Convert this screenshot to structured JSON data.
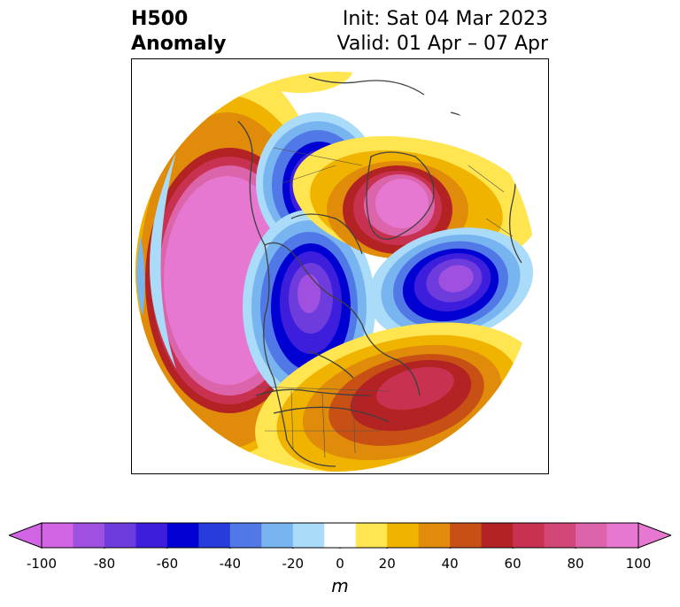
{
  "header": {
    "variable_line1": "H500",
    "variable_line2": "Anomaly",
    "init_text": "Init: Sat 04 Mar 2023",
    "valid_text": "Valid: 01 Apr – 07 Apr"
  },
  "map": {
    "projection": "polar-stereographic",
    "region": "North America / North Atlantic / Arctic"
  },
  "colorbar": {
    "unit": "m",
    "ticks": [
      "-100",
      "-80",
      "-60",
      "-40",
      "-20",
      "0",
      "20",
      "40",
      "60",
      "80",
      "100"
    ],
    "levels": [
      -100,
      -90,
      -80,
      -70,
      -60,
      -50,
      -40,
      -30,
      -20,
      -10,
      10,
      20,
      30,
      40,
      50,
      60,
      70,
      80,
      90,
      100
    ],
    "colors": [
      "#d264e6",
      "#a050e0",
      "#6e3cdc",
      "#3c1edc",
      "#0000d2",
      "#283cdc",
      "#5078e6",
      "#78b4f0",
      "#aadcfa",
      "#ffffff",
      "#ffe650",
      "#f0b400",
      "#e08c0a",
      "#c85014",
      "#b42323",
      "#c83250",
      "#d24678",
      "#dc64aa",
      "#e678d2"
    ],
    "extend": "both",
    "under_color": "#d264e6",
    "over_color": "#e678d2"
  }
}
